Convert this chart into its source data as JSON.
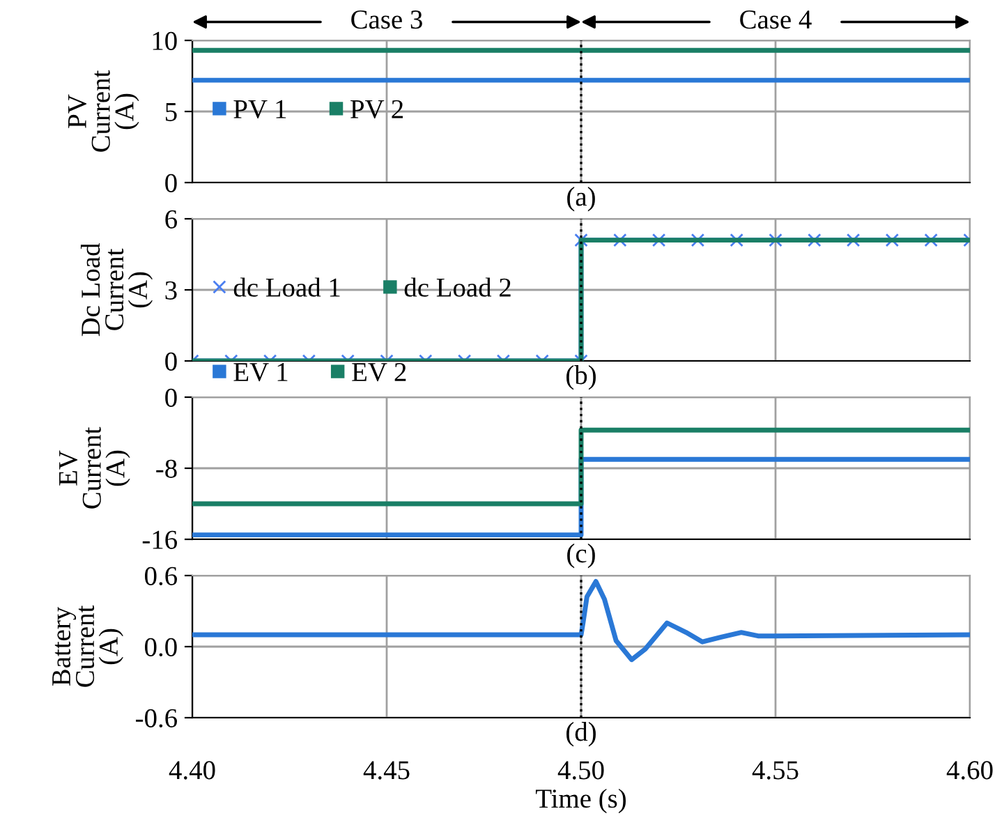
{
  "chart_data": [
    {
      "type": "line",
      "ylabel": "PV\nCurrent\n(A)",
      "xlim": [
        4.4,
        4.6
      ],
      "xticks": [
        4.4,
        4.45,
        4.5,
        4.55,
        4.6
      ],
      "ylim": [
        0,
        10
      ],
      "yticks": [
        0,
        5,
        10
      ],
      "tick_labels": "y",
      "grid": true,
      "legend": "left",
      "ref_lines": [
        {
          "axis": "x",
          "value": 4.5,
          "line_style": "dotted",
          "color": "#000000"
        }
      ],
      "annotations": [
        "Case 3",
        "Case 4",
        "(a)"
      ],
      "series": [
        {
          "name": "PV 1",
          "color": "#2a78d6",
          "x": [
            4.4,
            4.6
          ],
          "values": [
            7.2,
            7.2
          ]
        },
        {
          "name": "PV 2",
          "color": "#1a7f66",
          "x": [
            4.4,
            4.6
          ],
          "values": [
            9.3,
            9.3
          ]
        }
      ]
    },
    {
      "type": "line",
      "ylabel": "Dc Load\nCurrent\n(A)",
      "xlim": [
        4.4,
        4.6
      ],
      "xticks": [
        4.4,
        4.45,
        4.5,
        4.55,
        4.6
      ],
      "ylim": [
        0,
        6
      ],
      "yticks": [
        0,
        3,
        6
      ],
      "tick_labels": "y",
      "grid": true,
      "legend": "left",
      "ref_lines": [
        {
          "axis": "x",
          "value": 4.5,
          "line_style": "dotted",
          "color": "#000000"
        }
      ],
      "annotations": [
        "(b)"
      ],
      "series": [
        {
          "name": "dc Load 1",
          "color": "#4a7ef0",
          "marker": "cross",
          "x": [
            4.4,
            4.41,
            4.42,
            4.43,
            4.44,
            4.45,
            4.46,
            4.47,
            4.48,
            4.49,
            4.5,
            4.5,
            4.51,
            4.52,
            4.53,
            4.54,
            4.55,
            4.56,
            4.57,
            4.58,
            4.59,
            4.6
          ],
          "values": [
            0,
            0,
            0,
            0,
            0,
            0,
            0,
            0,
            0,
            0,
            0,
            5.1,
            5.1,
            5.1,
            5.1,
            5.1,
            5.1,
            5.1,
            5.1,
            5.1,
            5.1,
            5.1
          ]
        },
        {
          "name": "dc Load 2",
          "color": "#1a7f66",
          "x": [
            4.4,
            4.5,
            4.5,
            4.6
          ],
          "values": [
            0,
            0,
            5.1,
            5.1
          ]
        }
      ]
    },
    {
      "type": "line",
      "ylabel": "EV\nCurrent\n(A)",
      "xlim": [
        4.4,
        4.6
      ],
      "xticks": [
        4.4,
        4.45,
        4.5,
        4.55,
        4.6
      ],
      "ylim": [
        -16,
        0
      ],
      "yticks": [
        -16,
        -8,
        0
      ],
      "tick_labels": "y",
      "grid": true,
      "legend": "top left",
      "ref_lines": [
        {
          "axis": "x",
          "value": 4.5,
          "line_style": "dotted",
          "color": "#000000"
        }
      ],
      "annotations": [
        "(c)"
      ],
      "series": [
        {
          "name": "EV 1",
          "color": "#2a78d6",
          "x": [
            4.4,
            4.5,
            4.5,
            4.6
          ],
          "values": [
            -15.5,
            -15.5,
            -7.0,
            -7.0
          ]
        },
        {
          "name": "EV 2",
          "color": "#1a7f66",
          "x": [
            4.4,
            4.5,
            4.5,
            4.6
          ],
          "values": [
            -12.0,
            -12.0,
            -3.7,
            -3.7
          ]
        }
      ]
    },
    {
      "type": "line",
      "ylabel": "Battery\nCurrent\n(A)",
      "xlabel": "Time (s)",
      "xlim": [
        4.4,
        4.6
      ],
      "xticks": [
        {
          "value": 4.4,
          "label": "4.40"
        },
        {
          "value": 4.45,
          "label": "4.45"
        },
        {
          "value": 4.5,
          "label": "4.50"
        },
        {
          "value": 4.55,
          "label": "4.55"
        },
        {
          "value": 4.6,
          "label": "4.60"
        }
      ],
      "ylim": [
        -0.6,
        0.6
      ],
      "yticks": [
        {
          "value": -0.6,
          "label": "-0.6"
        },
        {
          "value": 0,
          "label": "0.0"
        },
        {
          "value": 0.6,
          "label": "0.6"
        }
      ],
      "grid": true,
      "ref_lines": [
        {
          "axis": "x",
          "value": 4.5,
          "line_style": "dotted",
          "color": "#000000"
        }
      ],
      "annotations": [
        "(d)"
      ],
      "series": [
        {
          "color": "#2a78d6",
          "x": [
            4.4,
            4.5,
            4.5005,
            4.5015,
            4.5038,
            4.506,
            4.509,
            4.513,
            4.5165,
            4.5221,
            4.527,
            4.5312,
            4.536,
            4.5412,
            4.5455,
            4.55,
            4.6
          ],
          "values": [
            0.1,
            0.1,
            0.2,
            0.42,
            0.55,
            0.4,
            0.05,
            -0.11,
            -0.02,
            0.2,
            0.12,
            0.04,
            0.08,
            0.12,
            0.09,
            0.09,
            0.1
          ]
        }
      ]
    }
  ]
}
